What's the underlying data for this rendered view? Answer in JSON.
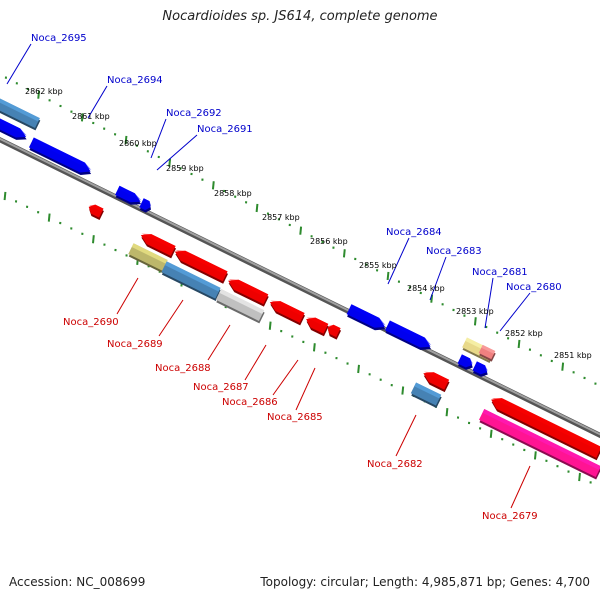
{
  "title": "Nocardioides sp. JS614, complete genome",
  "footer": {
    "accession": "Accession: NC_008699",
    "summary": "Topology: circular; Length: 4,985,871 bp; Genes: 4,700"
  },
  "colors": {
    "forward_label": "#0000cc",
    "reverse_label": "#cc0000",
    "tick": "#2e8b2e",
    "backbone": "#808080"
  },
  "kbp_labels": [
    "2862 kbp",
    "2861 kbp",
    "2860 kbp",
    "2859 kbp",
    "2858 kbp",
    "2857 kbp",
    "2856 kbp",
    "2855 kbp",
    "2854 kbp",
    "2853 kbp",
    "2852 kbp",
    "2851 kbp"
  ],
  "forward_labels": [
    "Noca_2695",
    "Noca_2694",
    "Noca_2692",
    "Noca_2691",
    "Noca_2684",
    "Noca_2683",
    "Noca_2681",
    "Noca_2680"
  ],
  "reverse_labels": [
    "Noca_2690",
    "Noca_2689",
    "Noca_2688",
    "Noca_2687",
    "Noca_2686",
    "Noca_2685",
    "Noca_2682",
    "Noca_2679"
  ]
}
